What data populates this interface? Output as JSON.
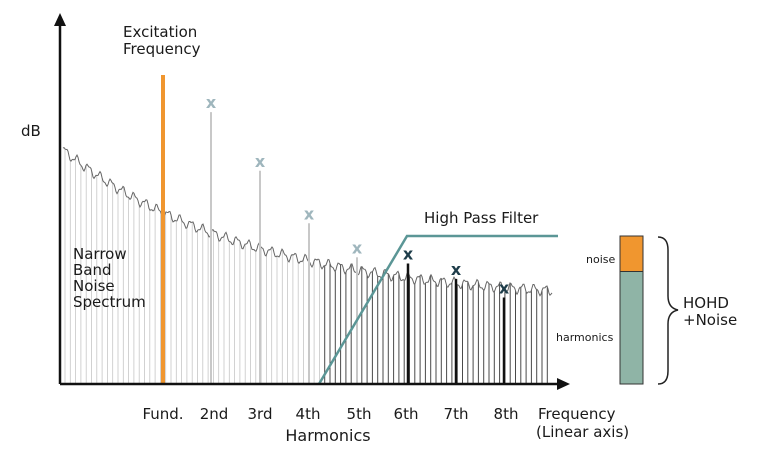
{
  "y_axis_label": "dB",
  "excitation_label": [
    "Excitation",
    "Frequency"
  ],
  "noise_label": [
    "Narrow",
    "Band",
    "Noise",
    "Spectrum"
  ],
  "filter_label": "High Pass Filter",
  "x_ticks": [
    "Fund.",
    "2nd",
    "3rd",
    "4th",
    "5th",
    "6th",
    "7th",
    "8th"
  ],
  "x_axis_title": "Harmonics",
  "x_axis_label": [
    "Frequency",
    "(Linear axis)"
  ],
  "harmonic_marker": "x",
  "bar": {
    "noise_label": "noise",
    "harmonics_label": "harmonics",
    "noise_fraction": 0.24,
    "harmonics_fraction": 0.76
  },
  "bracket_label": [
    "HOHD",
    "+Noise"
  ],
  "harmonic_levels": {
    "filtered_out": [
      0.88,
      0.69,
      0.52,
      0.41
    ],
    "passed": [
      0.39,
      0.34,
      0.28
    ]
  },
  "colors": {
    "excitation": "#f0962f",
    "filter": "#5b9696",
    "filtered_harmonic": "#c8c8c8",
    "filtered_marker": "#9fb6bd",
    "passed_marker": "#1e3d4a",
    "noise_fill": "#f0962f",
    "harmonics_fill": "#8fb4a6"
  }
}
